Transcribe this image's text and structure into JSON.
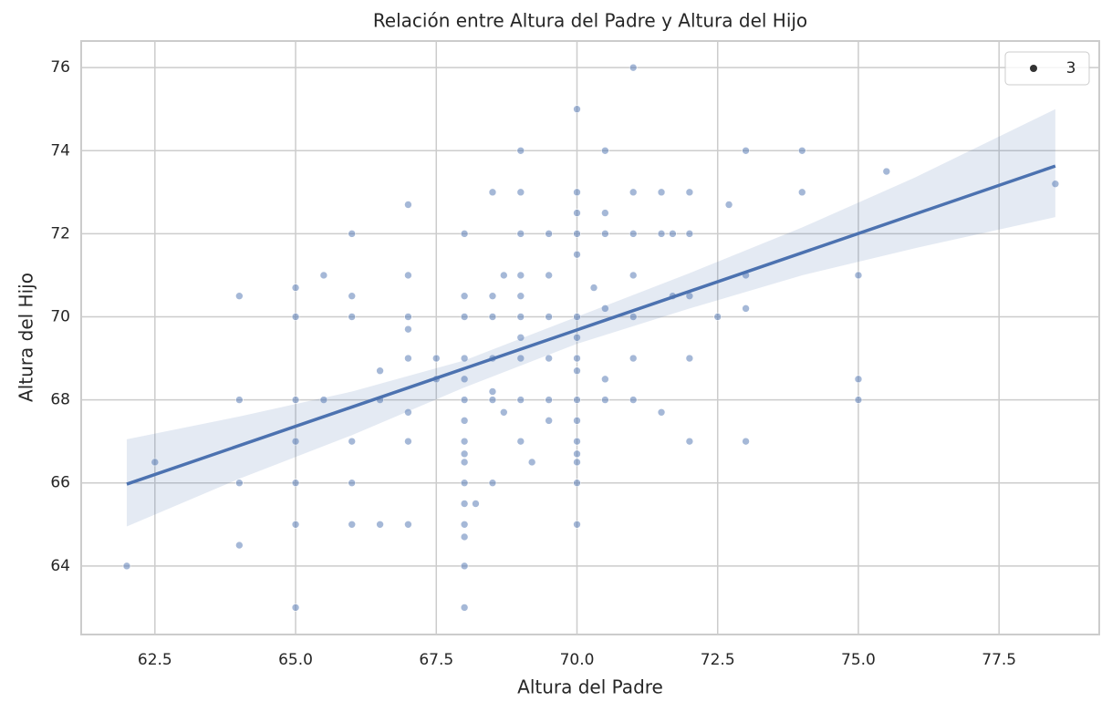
{
  "chart_data": {
    "type": "scatter",
    "title": "Relación entre Altura del Padre y Altura del Hijo",
    "xlabel": "Altura del Padre",
    "ylabel": "Altura del Hijo",
    "color": "#4c72b0",
    "grid": true,
    "legend": "upper right",
    "legend_label": "3",
    "x": [
      62,
      62.5,
      64,
      64,
      64,
      64,
      65,
      65,
      65,
      65,
      65,
      65,
      65,
      65.5,
      65.5,
      66,
      66,
      66,
      66,
      66,
      66,
      66.5,
      66.5,
      66.5,
      67,
      67,
      67,
      67,
      67,
      67,
      67,
      67,
      67.5,
      67.5,
      68,
      68,
      68,
      68,
      68,
      68,
      68,
      68,
      68,
      68,
      68,
      68,
      68,
      68,
      68,
      68,
      68.2,
      68.5,
      68.5,
      68.5,
      68.5,
      68.5,
      68.5,
      68.5,
      68.7,
      68.7,
      69,
      69,
      69,
      69,
      69,
      69,
      69,
      69,
      69,
      69,
      69.2,
      69.5,
      69.5,
      69.5,
      69.5,
      69.5,
      69.5,
      70,
      70,
      70,
      70,
      70,
      70,
      70,
      70,
      70,
      70,
      70,
      70,
      70,
      70,
      70,
      70,
      70.3,
      70.5,
      70.5,
      70.5,
      70.5,
      70.5,
      70.5,
      71,
      71,
      71,
      71,
      71,
      71,
      71,
      71.5,
      71.5,
      71.5,
      71.7,
      71.7,
      72,
      72,
      72,
      72,
      72,
      72.5,
      72.7,
      73,
      73,
      73,
      73,
      74,
      74,
      75,
      75,
      75,
      75.5,
      78.5
    ],
    "y": [
      64,
      66.5,
      70.5,
      68,
      66,
      64.5,
      70.7,
      70,
      68,
      67,
      66,
      65,
      63,
      71,
      68,
      72,
      70.5,
      70,
      67,
      66,
      65,
      68.7,
      68,
      65,
      72.7,
      71,
      70,
      69.7,
      69,
      67.7,
      67,
      65,
      69,
      68.5,
      72,
      70.5,
      70,
      69,
      68.5,
      68,
      67.5,
      67,
      66.7,
      66.5,
      66,
      65.5,
      65,
      64.7,
      64,
      63,
      65.5,
      73,
      70.5,
      70,
      69,
      68.2,
      68,
      66,
      71,
      67.7,
      74,
      73,
      72,
      71,
      70.5,
      70,
      69.5,
      69,
      68,
      67,
      66.5,
      72,
      71,
      70,
      69,
      68,
      67.5,
      75,
      73,
      72.5,
      72,
      71.5,
      70,
      69.5,
      69,
      68.7,
      68,
      67.5,
      67,
      66.7,
      66.5,
      66,
      65,
      70.7,
      74,
      72.5,
      72,
      70.2,
      68.5,
      68,
      76,
      73,
      72,
      71,
      70,
      69,
      68,
      73,
      72,
      67.7,
      72,
      70.5,
      73,
      72,
      70.5,
      69,
      67,
      70,
      72.7,
      74,
      71,
      70.2,
      67,
      74,
      73,
      71,
      68.5,
      68,
      73.5,
      73.2
    ],
    "regression": {
      "x": [
        62,
        78.5
      ],
      "y": [
        65.97,
        73.63
      ]
    },
    "ci": {
      "x": [
        62,
        64,
        66,
        68,
        70,
        72,
        74,
        76,
        78.5
      ],
      "lower": [
        64.95,
        66.1,
        67.15,
        68.3,
        69.35,
        70.2,
        71.0,
        71.65,
        72.4
      ],
      "upper": [
        67.05,
        67.6,
        68.2,
        68.95,
        70.0,
        71.05,
        72.15,
        73.35,
        75.0
      ]
    },
    "xlim": [
      61.19,
      79.28
    ],
    "ylim": [
      62.35,
      76.64
    ],
    "xticks": [
      {
        "value": 62.5,
        "label": "62.5"
      },
      {
        "value": 65,
        "label": "65.0"
      },
      {
        "value": 67.5,
        "label": "67.5"
      },
      {
        "value": 70,
        "label": "70.0"
      },
      {
        "value": 72.5,
        "label": "72.5"
      },
      {
        "value": 75,
        "label": "75.0"
      },
      {
        "value": 77.5,
        "label": "77.5"
      }
    ],
    "yticks": [
      64,
      66,
      68,
      70,
      72,
      74,
      76
    ]
  }
}
